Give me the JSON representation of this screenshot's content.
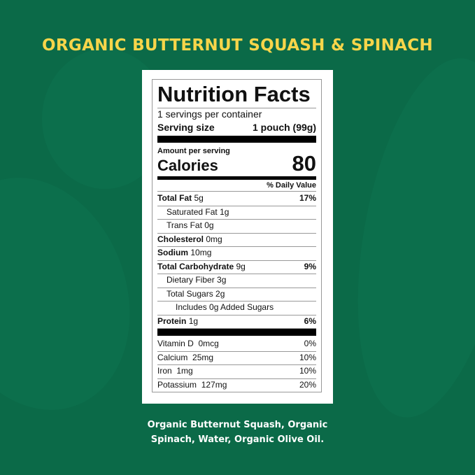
{
  "title": "ORGANIC BUTTERNUT SQUASH & SPINACH",
  "label": {
    "heading": "Nutrition Facts",
    "servings": "1 servings per container",
    "serving_size_label": "Serving size",
    "serving_size_value": "1 pouch (99g)",
    "amount_per_serving": "Amount per serving",
    "calories_label": "Calories",
    "calories_value": "80",
    "dv_header": "% Daily Value",
    "nutrients": [
      {
        "name": "Total Fat",
        "amount": "5g",
        "dv": "17%",
        "bold": true,
        "indent": 0
      },
      {
        "name": "Saturated Fat",
        "amount": "1g",
        "dv": "",
        "bold": false,
        "indent": 1
      },
      {
        "name": "Trans Fat",
        "amount": "0g",
        "dv": "",
        "bold": false,
        "indent": 1
      },
      {
        "name": "Cholesterol",
        "amount": "0mg",
        "dv": "",
        "bold": true,
        "indent": 0
      },
      {
        "name": "Sodium",
        "amount": "10mg",
        "dv": "",
        "bold": true,
        "indent": 0
      },
      {
        "name": "Total Carbohydrate",
        "amount": "9g",
        "dv": "9%",
        "bold": true,
        "indent": 0
      },
      {
        "name": "Dietary Fiber",
        "amount": "3g",
        "dv": "",
        "bold": false,
        "indent": 1
      },
      {
        "name": "Total Sugars",
        "amount": "2g",
        "dv": "",
        "bold": false,
        "indent": 1
      },
      {
        "name": "Includes 0g Added Sugars",
        "amount": "",
        "dv": "",
        "bold": false,
        "indent": 2
      },
      {
        "name": "Protein",
        "amount": "1g",
        "dv": "6%",
        "bold": true,
        "indent": 0
      }
    ],
    "vitamins": [
      {
        "name": "Vitamin D",
        "amount": "0mcg",
        "dv": "0%"
      },
      {
        "name": "Calcium",
        "amount": "25mg",
        "dv": "10%"
      },
      {
        "name": "Iron",
        "amount": "1mg",
        "dv": "10%"
      },
      {
        "name": "Potassium",
        "amount": "127mg",
        "dv": "20%"
      }
    ]
  },
  "ingredients": [
    "Organic Butternut Squash, Organic",
    "Spinach, Water, Organic Olive Oil."
  ]
}
